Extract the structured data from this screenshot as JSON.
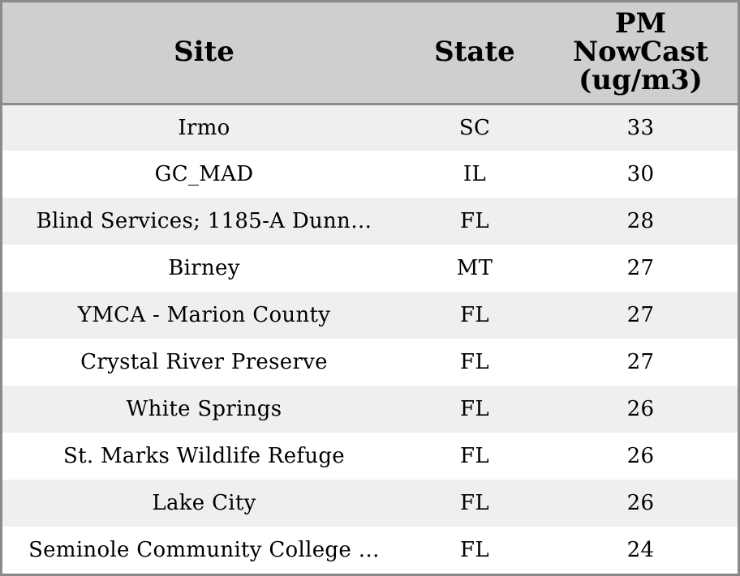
{
  "table": {
    "headers": {
      "site": "Site",
      "state": "State",
      "pm_line1": "PM",
      "pm_line2": "NowCast",
      "pm_line3": "(ug/m3)"
    },
    "rows": [
      {
        "site": "Irmo",
        "state": "SC",
        "pm": "33"
      },
      {
        "site": "GC_MAD",
        "state": "IL",
        "pm": "30"
      },
      {
        "site": "Blind Services; 1185-A Dunn…",
        "state": "FL",
        "pm": "28"
      },
      {
        "site": "Birney",
        "state": "MT",
        "pm": "27"
      },
      {
        "site": "YMCA - Marion County",
        "state": "FL",
        "pm": "27"
      },
      {
        "site": "Crystal River Preserve",
        "state": "FL",
        "pm": "27"
      },
      {
        "site": "White Springs",
        "state": "FL",
        "pm": "26"
      },
      {
        "site": "St. Marks Wildlife Refuge",
        "state": "FL",
        "pm": "26"
      },
      {
        "site": "Lake City",
        "state": "FL",
        "pm": "26"
      },
      {
        "site": "Seminole Community College …",
        "state": "FL",
        "pm": "24"
      }
    ]
  },
  "colors": {
    "header_bg": "#cfcfcf",
    "row_alt_bg": "#efefef",
    "row_bg": "#ffffff",
    "border": "#8a8a8a"
  }
}
